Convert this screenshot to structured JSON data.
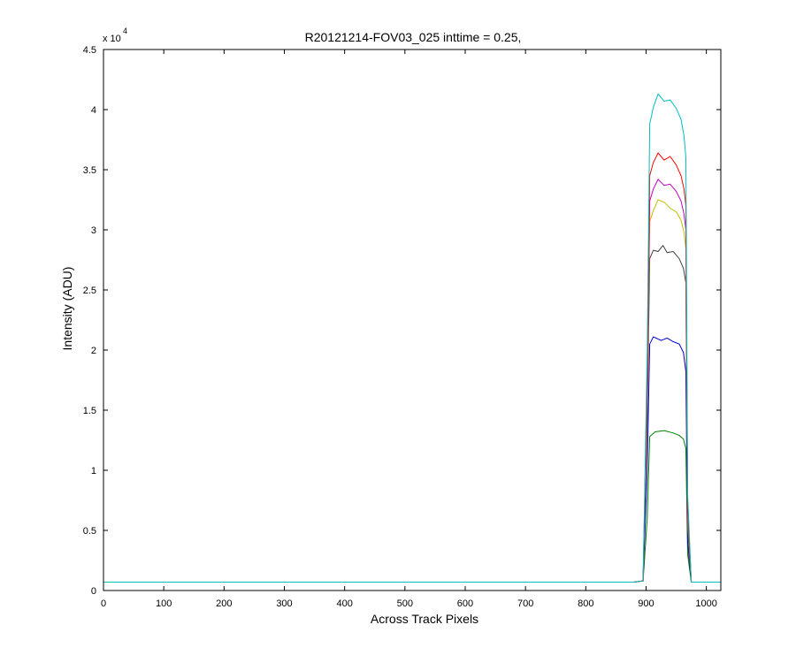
{
  "chart_data": {
    "type": "line",
    "title": "R20121214-FOV03_025 inttime = 0.25,",
    "xlabel": "Across Track Pixels",
    "ylabel": "Intensity (ADU)",
    "y_exponent_label": "x 10",
    "y_exponent": "4",
    "xlim": [
      0,
      1024
    ],
    "ylim": [
      0,
      45000
    ],
    "grid": false,
    "x_ticks": [
      0,
      100,
      200,
      300,
      400,
      500,
      600,
      700,
      800,
      900,
      1000
    ],
    "x_tick_labels": [
      "0",
      "100",
      "200",
      "300",
      "400",
      "500",
      "600",
      "700",
      "800",
      "900",
      "1000"
    ],
    "y_ticks": [
      0,
      5000,
      10000,
      15000,
      20000,
      25000,
      30000,
      35000,
      40000,
      45000
    ],
    "y_tick_labels": [
      "0",
      "0.5",
      "1",
      "1.5",
      "2",
      "2.5",
      "3",
      "3.5",
      "4",
      "4.5"
    ],
    "series": [
      {
        "color": "#008000",
        "values": [
          [
            0,
            700
          ],
          [
            880,
            700
          ],
          [
            895,
            800
          ],
          [
            902,
            6000
          ],
          [
            906,
            12800
          ],
          [
            915,
            13200
          ],
          [
            930,
            13300
          ],
          [
            945,
            13100
          ],
          [
            955,
            12900
          ],
          [
            962,
            12600
          ],
          [
            966,
            11800
          ],
          [
            969,
            3000
          ],
          [
            975,
            700
          ],
          [
            1024,
            700
          ]
        ]
      },
      {
        "color": "#0000cc",
        "values": [
          [
            0,
            700
          ],
          [
            880,
            700
          ],
          [
            895,
            800
          ],
          [
            902,
            10000
          ],
          [
            906,
            20500
          ],
          [
            912,
            21100
          ],
          [
            925,
            20800
          ],
          [
            935,
            21000
          ],
          [
            945,
            20700
          ],
          [
            955,
            20500
          ],
          [
            962,
            19800
          ],
          [
            966,
            18200
          ],
          [
            969,
            4000
          ],
          [
            975,
            700
          ],
          [
            1024,
            700
          ]
        ]
      },
      {
        "color": "#404040",
        "values": [
          [
            0,
            700
          ],
          [
            880,
            700
          ],
          [
            895,
            800
          ],
          [
            902,
            14000
          ],
          [
            906,
            27600
          ],
          [
            912,
            28300
          ],
          [
            920,
            28200
          ],
          [
            928,
            28700
          ],
          [
            935,
            28100
          ],
          [
            945,
            28200
          ],
          [
            955,
            27600
          ],
          [
            962,
            26800
          ],
          [
            966,
            25600
          ],
          [
            969,
            5000
          ],
          [
            975,
            700
          ],
          [
            1024,
            700
          ]
        ]
      },
      {
        "color": "#bfbf00",
        "values": [
          [
            0,
            700
          ],
          [
            880,
            700
          ],
          [
            895,
            800
          ],
          [
            902,
            16000
          ],
          [
            906,
            30700
          ],
          [
            912,
            31600
          ],
          [
            920,
            32500
          ],
          [
            930,
            32300
          ],
          [
            940,
            31800
          ],
          [
            950,
            31500
          ],
          [
            958,
            30800
          ],
          [
            963,
            29800
          ],
          [
            966,
            28400
          ],
          [
            969,
            6000
          ],
          [
            975,
            700
          ],
          [
            1024,
            700
          ]
        ]
      },
      {
        "color": "#bf00bf",
        "values": [
          [
            0,
            700
          ],
          [
            880,
            700
          ],
          [
            895,
            800
          ],
          [
            902,
            17000
          ],
          [
            906,
            32400
          ],
          [
            912,
            33400
          ],
          [
            920,
            34200
          ],
          [
            930,
            33700
          ],
          [
            940,
            33800
          ],
          [
            950,
            33200
          ],
          [
            958,
            32400
          ],
          [
            963,
            31300
          ],
          [
            966,
            30000
          ],
          [
            969,
            6500
          ],
          [
            975,
            700
          ],
          [
            1024,
            700
          ]
        ]
      },
      {
        "color": "#ff0000",
        "values": [
          [
            0,
            700
          ],
          [
            880,
            700
          ],
          [
            895,
            800
          ],
          [
            902,
            18000
          ],
          [
            906,
            34500
          ],
          [
            912,
            35600
          ],
          [
            920,
            36400
          ],
          [
            930,
            35800
          ],
          [
            940,
            36100
          ],
          [
            950,
            35400
          ],
          [
            958,
            34500
          ],
          [
            963,
            33400
          ],
          [
            966,
            32000
          ],
          [
            969,
            7000
          ],
          [
            975,
            700
          ],
          [
            1024,
            700
          ]
        ]
      },
      {
        "color": "#00bfbf",
        "values": [
          [
            0,
            700
          ],
          [
            880,
            700
          ],
          [
            895,
            800
          ],
          [
            902,
            20000
          ],
          [
            906,
            38800
          ],
          [
            912,
            40200
          ],
          [
            920,
            41300
          ],
          [
            930,
            40700
          ],
          [
            940,
            40800
          ],
          [
            950,
            40100
          ],
          [
            958,
            39200
          ],
          [
            963,
            37800
          ],
          [
            966,
            36000
          ],
          [
            969,
            8000
          ],
          [
            975,
            700
          ],
          [
            1024,
            700
          ]
        ]
      }
    ]
  }
}
